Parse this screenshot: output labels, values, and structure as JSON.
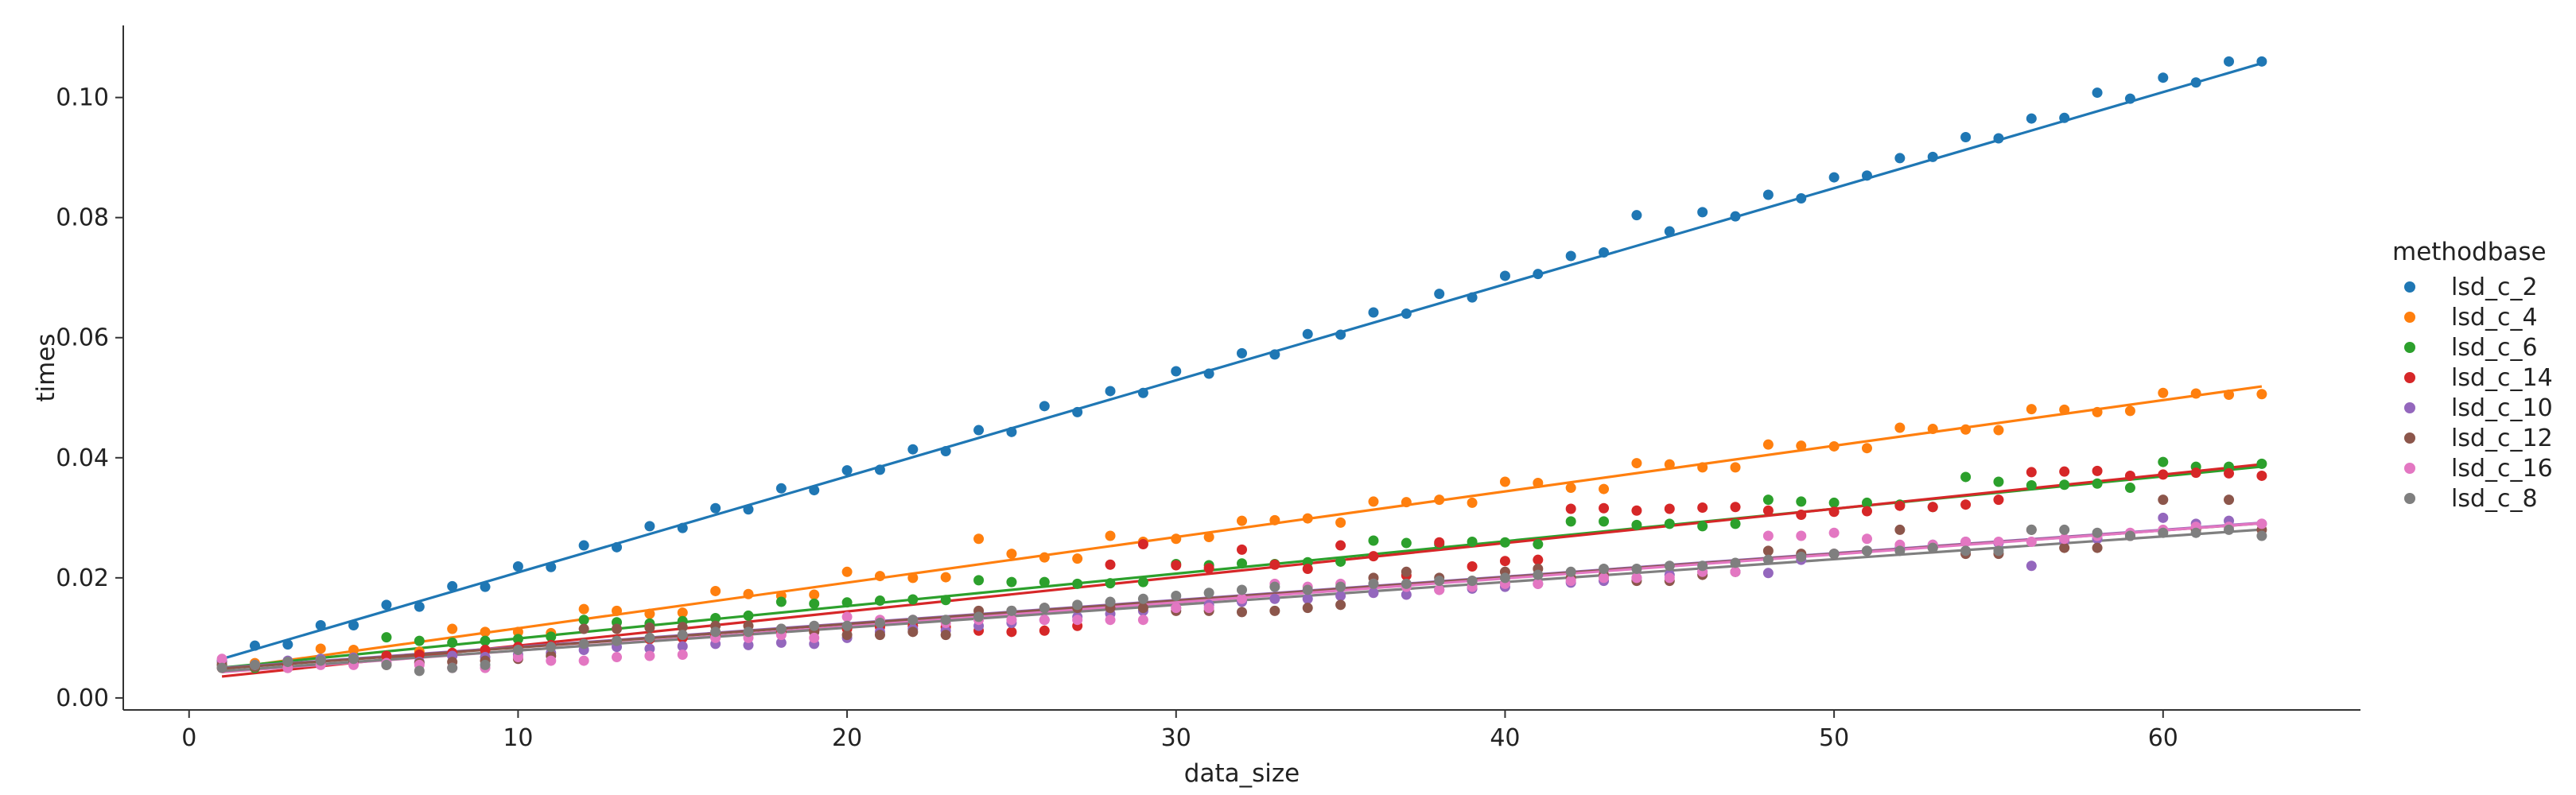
{
  "chart_data": {
    "type": "scatter",
    "title": "",
    "xlabel": "data_size",
    "ylabel": "times",
    "xlim": [
      -2,
      66
    ],
    "ylim": [
      -0.002,
      0.112
    ],
    "xticks": [
      0,
      10,
      20,
      30,
      40,
      50,
      60
    ],
    "yticks": [
      0.0,
      0.02,
      0.04,
      0.06,
      0.08,
      0.1
    ],
    "ytick_labels": [
      "0.00",
      "0.02",
      "0.04",
      "0.06",
      "0.08",
      "0.10"
    ],
    "grid": false,
    "legend_title": "methodbase",
    "legend_position": "right",
    "series": [
      {
        "name": "lsd_c_2",
        "color": "#1f77b4",
        "fit": [
          0.0049,
          0.0016
        ],
        "x": [
          1,
          2,
          3,
          4,
          5,
          6,
          7,
          8,
          9,
          10,
          11,
          12,
          13,
          14,
          15,
          16,
          17,
          18,
          19,
          20,
          21,
          22,
          23,
          24,
          25,
          26,
          27,
          28,
          29,
          30,
          31,
          32,
          33,
          34,
          35,
          36,
          37,
          38,
          39,
          40,
          41,
          42,
          43,
          44,
          45,
          46,
          47,
          48,
          49,
          50,
          51,
          52,
          53,
          54,
          55,
          56,
          57,
          58,
          59,
          60,
          61,
          62,
          63
        ],
        "y": [
          0.0062,
          0.0087,
          0.0089,
          0.0121,
          0.0121,
          0.0155,
          0.0152,
          0.0186,
          0.0185,
          0.0219,
          0.0218,
          0.0254,
          0.0251,
          0.0286,
          0.0283,
          0.0316,
          0.0314,
          0.0349,
          0.0346,
          0.0379,
          0.038,
          0.0414,
          0.0411,
          0.0446,
          0.0443,
          0.0486,
          0.0476,
          0.0511,
          0.0508,
          0.0544,
          0.054,
          0.0574,
          0.0572,
          0.0606,
          0.0605,
          0.0642,
          0.064,
          0.0673,
          0.0667,
          0.0703,
          0.0706,
          0.0736,
          0.0742,
          0.0804,
          0.0777,
          0.0809,
          0.0802,
          0.0838,
          0.0832,
          0.0867,
          0.087,
          0.0899,
          0.0901,
          0.0934,
          0.0932,
          0.0965,
          0.0966,
          0.1008,
          0.0998,
          0.1033,
          0.1025,
          0.106,
          0.106
        ]
      },
      {
        "name": "lsd_c_4",
        "color": "#ff7f0e",
        "fit": [
          0.004,
          0.00076
        ],
        "x": [
          1,
          2,
          3,
          4,
          5,
          6,
          7,
          8,
          9,
          10,
          11,
          12,
          13,
          14,
          15,
          16,
          17,
          18,
          19,
          20,
          21,
          22,
          23,
          24,
          25,
          26,
          27,
          28,
          29,
          30,
          31,
          32,
          33,
          34,
          35,
          36,
          37,
          38,
          39,
          40,
          41,
          42,
          43,
          44,
          45,
          46,
          47,
          48,
          49,
          50,
          51,
          52,
          53,
          54,
          55,
          56,
          57,
          58,
          59,
          60,
          61,
          62,
          63
        ],
        "y": [
          0.006,
          0.0058,
          0.0061,
          0.0082,
          0.008,
          0.007,
          0.0077,
          0.0115,
          0.011,
          0.011,
          0.0108,
          0.0148,
          0.0145,
          0.014,
          0.0142,
          0.0178,
          0.0173,
          0.017,
          0.0172,
          0.021,
          0.0203,
          0.02,
          0.0201,
          0.0265,
          0.024,
          0.0234,
          0.0232,
          0.027,
          0.026,
          0.0265,
          0.0268,
          0.0295,
          0.0296,
          0.0299,
          0.0292,
          0.0327,
          0.0326,
          0.033,
          0.0325,
          0.036,
          0.0358,
          0.035,
          0.0348,
          0.0391,
          0.0389,
          0.0384,
          0.0384,
          0.0422,
          0.042,
          0.0419,
          0.0416,
          0.045,
          0.0448,
          0.0447,
          0.0446,
          0.0481,
          0.048,
          0.0476,
          0.0478,
          0.0508,
          0.0507,
          0.0505,
          0.0506
        ]
      },
      {
        "name": "lsd_c_6",
        "color": "#2ca02c",
        "fit": [
          0.0045,
          0.00054
        ],
        "x": [
          1,
          2,
          3,
          4,
          5,
          6,
          7,
          8,
          9,
          10,
          11,
          12,
          13,
          14,
          15,
          16,
          17,
          18,
          19,
          20,
          21,
          22,
          23,
          24,
          25,
          26,
          27,
          28,
          29,
          30,
          31,
          32,
          33,
          34,
          35,
          36,
          37,
          38,
          39,
          40,
          41,
          42,
          43,
          44,
          45,
          46,
          47,
          48,
          49,
          50,
          51,
          52,
          53,
          54,
          55,
          56,
          57,
          58,
          59,
          60,
          61,
          62,
          63
        ],
        "y": [
          0.0055,
          0.005,
          0.0061,
          0.0065,
          0.0063,
          0.0101,
          0.0095,
          0.0092,
          0.0095,
          0.0098,
          0.0102,
          0.013,
          0.0126,
          0.0124,
          0.0128,
          0.0133,
          0.0137,
          0.016,
          0.0157,
          0.0159,
          0.0162,
          0.0164,
          0.0163,
          0.0196,
          0.0193,
          0.0193,
          0.019,
          0.0191,
          0.0193,
          0.0223,
          0.0221,
          0.0224,
          0.0223,
          0.0226,
          0.0227,
          0.0262,
          0.0258,
          0.0256,
          0.026,
          0.0259,
          0.0256,
          0.0294,
          0.0294,
          0.0288,
          0.029,
          0.0286,
          0.029,
          0.033,
          0.0327,
          0.0325,
          0.0325,
          0.0322,
          0.0318,
          0.0368,
          0.036,
          0.0354,
          0.0355,
          0.0357,
          0.035,
          0.0393,
          0.0385,
          0.0385,
          0.039
        ]
      },
      {
        "name": "lsd_c_14",
        "color": "#d62728",
        "fit": [
          0.003,
          0.00057
        ],
        "x": [
          1,
          2,
          3,
          4,
          5,
          6,
          7,
          8,
          9,
          10,
          11,
          12,
          13,
          14,
          15,
          16,
          17,
          18,
          19,
          20,
          21,
          22,
          23,
          24,
          25,
          26,
          27,
          28,
          29,
          30,
          31,
          32,
          33,
          34,
          35,
          36,
          37,
          38,
          39,
          40,
          41,
          42,
          43,
          44,
          45,
          46,
          47,
          48,
          49,
          50,
          51,
          52,
          53,
          54,
          55,
          56,
          57,
          58,
          59,
          60,
          61,
          62,
          63
        ],
        "y": [
          0.005,
          0.0052,
          0.0055,
          0.006,
          0.0065,
          0.007,
          0.0072,
          0.0075,
          0.008,
          0.0085,
          0.0088,
          0.009,
          0.0095,
          0.0098,
          0.01,
          0.0105,
          0.0108,
          0.011,
          0.0112,
          0.0115,
          0.0118,
          0.012,
          0.0118,
          0.0112,
          0.011,
          0.0112,
          0.012,
          0.0222,
          0.0256,
          0.0221,
          0.0216,
          0.0247,
          0.0222,
          0.0215,
          0.0254,
          0.0236,
          0.0204,
          0.0259,
          0.0219,
          0.0228,
          0.023,
          0.0315,
          0.0316,
          0.0312,
          0.0315,
          0.0317,
          0.0318,
          0.0312,
          0.0305,
          0.031,
          0.0311,
          0.032,
          0.0318,
          0.0322,
          0.033,
          0.0376,
          0.0377,
          0.0378,
          0.037,
          0.0372,
          0.0375,
          0.0374,
          0.037
        ]
      },
      {
        "name": "lsd_c_10",
        "color": "#9467bd",
        "fit": [
          0.0046,
          0.00039
        ],
        "x": [
          1,
          2,
          3,
          4,
          5,
          6,
          7,
          8,
          9,
          10,
          11,
          12,
          13,
          14,
          15,
          16,
          17,
          18,
          19,
          20,
          21,
          22,
          23,
          24,
          25,
          26,
          27,
          28,
          29,
          30,
          31,
          32,
          33,
          34,
          35,
          36,
          37,
          38,
          39,
          40,
          41,
          42,
          43,
          44,
          45,
          46,
          47,
          48,
          49,
          50,
          51,
          52,
          53,
          54,
          55,
          56,
          57,
          58,
          59,
          60,
          61,
          62,
          63
        ],
        "y": [
          0.006,
          0.0055,
          0.0062,
          0.0065,
          0.0067,
          0.0058,
          0.006,
          0.007,
          0.0068,
          0.0072,
          0.0075,
          0.008,
          0.0085,
          0.0082,
          0.0086,
          0.009,
          0.0088,
          0.0092,
          0.009,
          0.01,
          0.011,
          0.0115,
          0.0112,
          0.012,
          0.0125,
          0.013,
          0.0135,
          0.014,
          0.0145,
          0.015,
          0.0155,
          0.016,
          0.0165,
          0.0165,
          0.017,
          0.0175,
          0.0172,
          0.018,
          0.0182,
          0.0185,
          0.019,
          0.0192,
          0.0195,
          0.02,
          0.0205,
          0.021,
          0.021,
          0.0208,
          0.023,
          0.024,
          0.0245,
          0.025,
          0.0255,
          0.026,
          0.0258,
          0.022,
          0.0262,
          0.0265,
          0.027,
          0.03,
          0.029,
          0.0295,
          0.029
        ]
      },
      {
        "name": "lsd_c_12",
        "color": "#8c564b",
        "fit": [
          0.0045,
          0.00039
        ],
        "x": [
          1,
          2,
          3,
          4,
          5,
          6,
          7,
          8,
          9,
          10,
          11,
          12,
          13,
          14,
          15,
          16,
          17,
          18,
          19,
          20,
          21,
          22,
          23,
          24,
          25,
          26,
          27,
          28,
          29,
          30,
          31,
          32,
          33,
          34,
          35,
          36,
          37,
          38,
          39,
          40,
          41,
          42,
          43,
          44,
          45,
          46,
          47,
          48,
          49,
          50,
          51,
          52,
          53,
          54,
          55,
          56,
          57,
          58,
          59,
          60,
          61,
          62,
          63
        ],
        "y": [
          0.0055,
          0.0052,
          0.005,
          0.0057,
          0.006,
          0.0055,
          0.0058,
          0.006,
          0.0062,
          0.0065,
          0.007,
          0.0115,
          0.0115,
          0.0117,
          0.0118,
          0.012,
          0.012,
          0.0115,
          0.011,
          0.0105,
          0.0105,
          0.011,
          0.0105,
          0.0145,
          0.0145,
          0.015,
          0.015,
          0.015,
          0.015,
          0.0145,
          0.0145,
          0.0143,
          0.0145,
          0.015,
          0.0155,
          0.02,
          0.021,
          0.02,
          0.0195,
          0.021,
          0.0215,
          0.02,
          0.0205,
          0.0195,
          0.0195,
          0.0205,
          0.021,
          0.0245,
          0.024,
          0.024,
          0.0245,
          0.028,
          0.025,
          0.024,
          0.024,
          0.028,
          0.025,
          0.025,
          0.027,
          0.033,
          0.028,
          0.033,
          0.028
        ]
      },
      {
        "name": "lsd_c_16",
        "color": "#e377c2",
        "fit": [
          0.0039,
          0.0004
        ],
        "x": [
          1,
          2,
          3,
          4,
          5,
          6,
          7,
          8,
          9,
          10,
          11,
          12,
          13,
          14,
          15,
          16,
          17,
          18,
          19,
          20,
          21,
          22,
          23,
          24,
          25,
          26,
          27,
          28,
          29,
          30,
          31,
          32,
          33,
          34,
          35,
          36,
          37,
          38,
          39,
          40,
          41,
          42,
          43,
          44,
          45,
          46,
          47,
          48,
          49,
          50,
          51,
          52,
          53,
          54,
          55,
          56,
          57,
          58,
          59,
          60,
          61,
          62,
          63
        ],
        "y": [
          0.0065,
          0.0055,
          0.005,
          0.0055,
          0.0055,
          0.0058,
          0.0055,
          0.005,
          0.005,
          0.0068,
          0.0062,
          0.0062,
          0.0068,
          0.007,
          0.0072,
          0.01,
          0.01,
          0.0105,
          0.01,
          0.0135,
          0.013,
          0.013,
          0.0125,
          0.013,
          0.013,
          0.013,
          0.013,
          0.013,
          0.013,
          0.015,
          0.015,
          0.0165,
          0.019,
          0.0185,
          0.019,
          0.019,
          0.0185,
          0.018,
          0.0185,
          0.019,
          0.019,
          0.0195,
          0.02,
          0.02,
          0.02,
          0.021,
          0.021,
          0.027,
          0.027,
          0.0275,
          0.0265,
          0.0255,
          0.0255,
          0.026,
          0.026,
          0.026,
          0.0265,
          0.027,
          0.0275,
          0.028,
          0.0285,
          0.0285,
          0.029
        ]
      },
      {
        "name": "lsd_c_8",
        "color": "#7f7f7f",
        "fit": [
          0.0041,
          0.00038
        ],
        "x": [
          1,
          2,
          3,
          4,
          5,
          6,
          7,
          8,
          9,
          10,
          11,
          12,
          13,
          14,
          15,
          16,
          17,
          18,
          19,
          20,
          21,
          22,
          23,
          24,
          25,
          26,
          27,
          28,
          29,
          30,
          31,
          32,
          33,
          34,
          35,
          36,
          37,
          38,
          39,
          40,
          41,
          42,
          43,
          44,
          45,
          46,
          47,
          48,
          49,
          50,
          51,
          52,
          53,
          54,
          55,
          56,
          57,
          58,
          59,
          60,
          61,
          62,
          63
        ],
        "y": [
          0.005,
          0.0055,
          0.006,
          0.0062,
          0.0065,
          0.0055,
          0.0045,
          0.005,
          0.0055,
          0.008,
          0.0085,
          0.009,
          0.0095,
          0.01,
          0.0105,
          0.011,
          0.011,
          0.0115,
          0.012,
          0.012,
          0.0125,
          0.013,
          0.013,
          0.0135,
          0.0145,
          0.015,
          0.0155,
          0.016,
          0.0165,
          0.017,
          0.0175,
          0.018,
          0.0185,
          0.018,
          0.0185,
          0.019,
          0.019,
          0.0195,
          0.0195,
          0.02,
          0.0205,
          0.021,
          0.0215,
          0.0215,
          0.022,
          0.022,
          0.0225,
          0.023,
          0.0235,
          0.024,
          0.0245,
          0.0245,
          0.025,
          0.0245,
          0.0245,
          0.028,
          0.028,
          0.0275,
          0.027,
          0.0275,
          0.0275,
          0.028,
          0.027
        ]
      }
    ]
  }
}
